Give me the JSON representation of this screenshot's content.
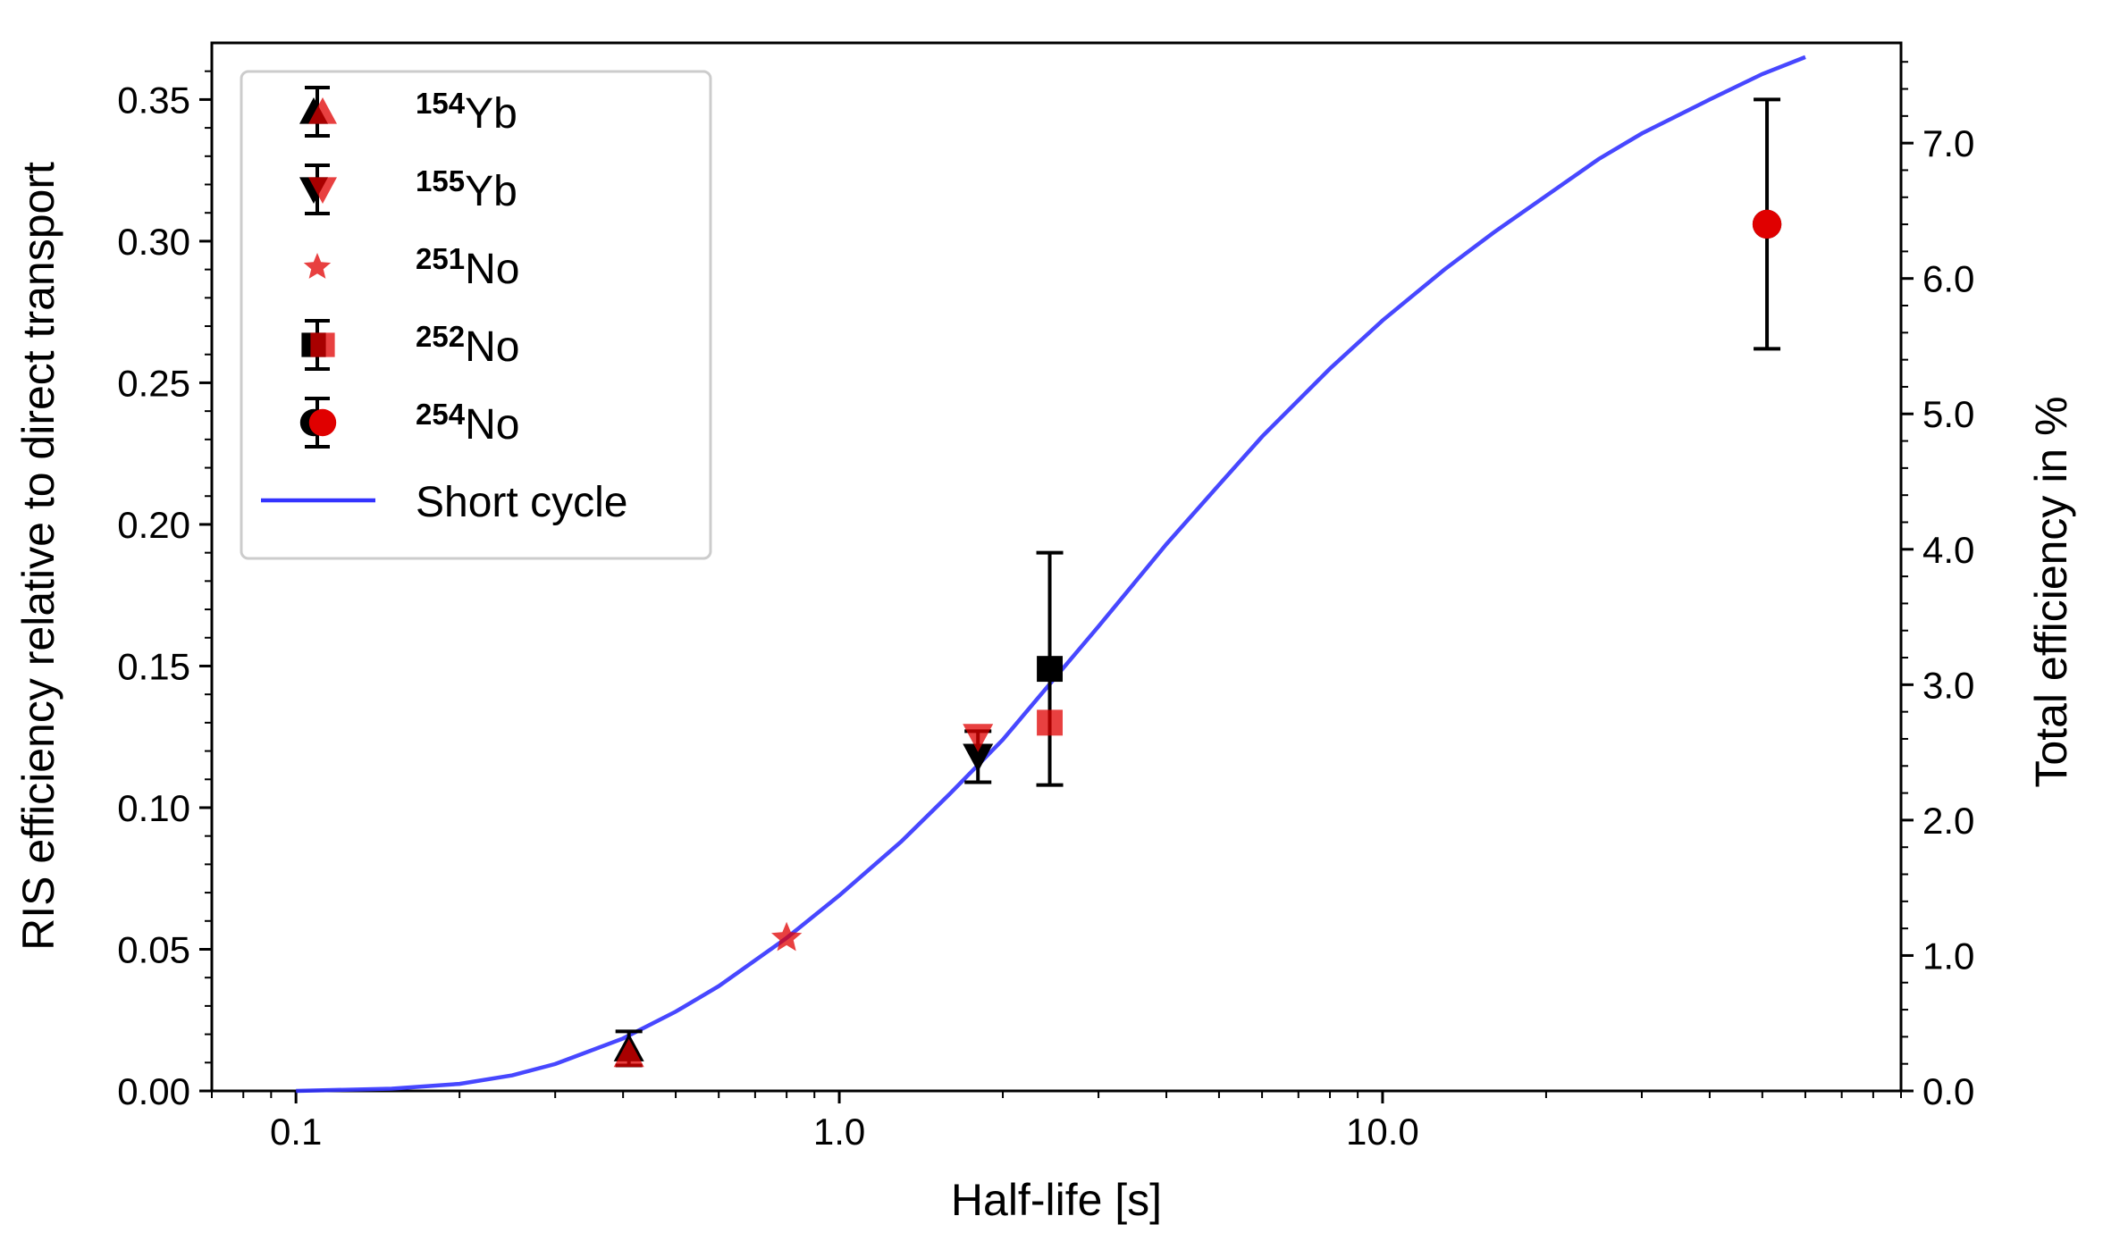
{
  "chart_data": {
    "type": "scatter",
    "title": "",
    "xlabel": "Half-life [s]",
    "ylabel": "RIS efficiency relative to direct transport",
    "y2label": "Total efficiency in %",
    "xscale": "log",
    "xlim": [
      0.07,
      90
    ],
    "ylim": [
      0,
      0.37
    ],
    "y2lim": [
      0,
      7.74
    ],
    "xticks": [
      0.1,
      1.0,
      10.0
    ],
    "xtick_labels": [
      "0.1",
      "1.0",
      "10.0"
    ],
    "yticks": [
      0.0,
      0.05,
      0.1,
      0.15,
      0.2,
      0.25,
      0.3,
      0.35
    ],
    "ytick_labels": [
      "0.00",
      "0.05",
      "0.10",
      "0.15",
      "0.20",
      "0.25",
      "0.30",
      "0.35"
    ],
    "y2ticks": [
      0.0,
      1.0,
      2.0,
      3.0,
      4.0,
      5.0,
      6.0,
      7.0
    ],
    "y2tick_labels": [
      "0.0",
      "1.0",
      "2.0",
      "3.0",
      "4.0",
      "5.0",
      "6.0",
      "7.0"
    ],
    "grid": false,
    "legend_position": "top-left",
    "colors": {
      "black": "#000000",
      "red": "#e00000",
      "line": "#3333ff"
    },
    "series": [
      {
        "name": "154Yb",
        "mass": "154",
        "element": "Yb",
        "marker": "triangle-up",
        "points": [
          {
            "x": 0.41,
            "y": 0.015,
            "yerr": 0.006,
            "color": "black"
          },
          {
            "x": 0.41,
            "y": 0.013,
            "color": "red"
          }
        ]
      },
      {
        "name": "155Yb",
        "mass": "155",
        "element": "Yb",
        "marker": "triangle-down",
        "points": [
          {
            "x": 1.8,
            "y": 0.118,
            "yerr": 0.009,
            "color": "black"
          },
          {
            "x": 1.8,
            "y": 0.125,
            "color": "red"
          }
        ]
      },
      {
        "name": "251No",
        "mass": "251",
        "element": "No",
        "marker": "star",
        "points": [
          {
            "x": 0.8,
            "y": 0.054,
            "color": "red"
          }
        ]
      },
      {
        "name": "252No",
        "mass": "252",
        "element": "No",
        "marker": "square",
        "points": [
          {
            "x": 2.44,
            "y": 0.149,
            "yerr": 0.041,
            "color": "black"
          },
          {
            "x": 2.44,
            "y": 0.13,
            "color": "red"
          }
        ]
      },
      {
        "name": "254No",
        "mass": "254",
        "element": "No",
        "marker": "circle",
        "points": [
          {
            "x": 51,
            "y": 0.306,
            "yerr": 0.044,
            "color": "black"
          },
          {
            "x": 51,
            "y": 0.306,
            "color": "red"
          }
        ]
      }
    ],
    "curve": {
      "name": "Short cycle",
      "x": [
        0.1,
        0.15,
        0.2,
        0.25,
        0.3,
        0.4,
        0.5,
        0.6,
        0.8,
        1.0,
        1.3,
        1.6,
        2.0,
        2.5,
        3.0,
        4.0,
        5.0,
        6.0,
        8.0,
        10.0,
        13.0,
        16.0,
        20.0,
        25.0,
        30.0,
        40.0,
        50.0,
        60.0
      ],
      "y": [
        0.0,
        0.0008,
        0.0025,
        0.0055,
        0.0095,
        0.0185,
        0.028,
        0.037,
        0.054,
        0.069,
        0.088,
        0.105,
        0.124,
        0.146,
        0.164,
        0.193,
        0.214,
        0.231,
        0.255,
        0.272,
        0.29,
        0.303,
        0.316,
        0.329,
        0.338,
        0.35,
        0.359,
        0.365
      ]
    }
  }
}
